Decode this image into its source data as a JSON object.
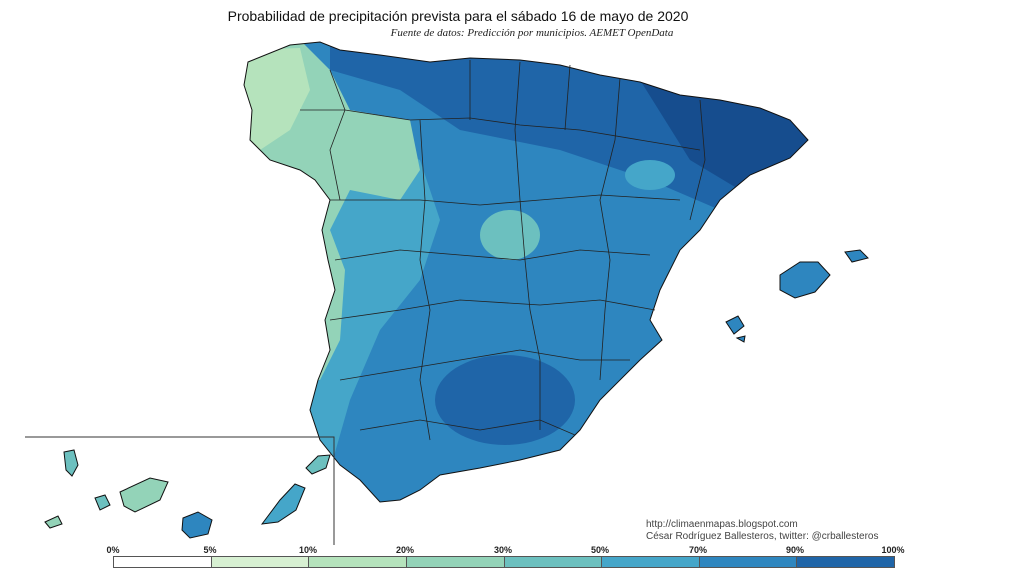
{
  "title": "Probabilidad de precipitación prevista para el sábado 16 de mayo de 2020",
  "subtitle": "Fuente de datos: Predicción por municipios. AEMET OpenData",
  "credits": {
    "url": "http://climaenmapas.blogspot.com",
    "author": "César Rodríguez Ballesteros, twitter: @crballesteros"
  },
  "legend": {
    "labels": [
      "0%",
      "5%",
      "10%",
      "20%",
      "30%",
      "50%",
      "70%",
      "90%",
      "100%"
    ],
    "colors": [
      "#ffffff",
      "#d7f0d2",
      "#b5e3bc",
      "#93d3b8",
      "#6cc0bf",
      "#45a6c9",
      "#2e86bf",
      "#1f65a8",
      "#164d8e"
    ]
  },
  "regions": {
    "peninsula_color": "#2e86bf",
    "northwest_color": "#93d3b8",
    "north_color": "#1f65a8",
    "inset": "canary-islands"
  }
}
